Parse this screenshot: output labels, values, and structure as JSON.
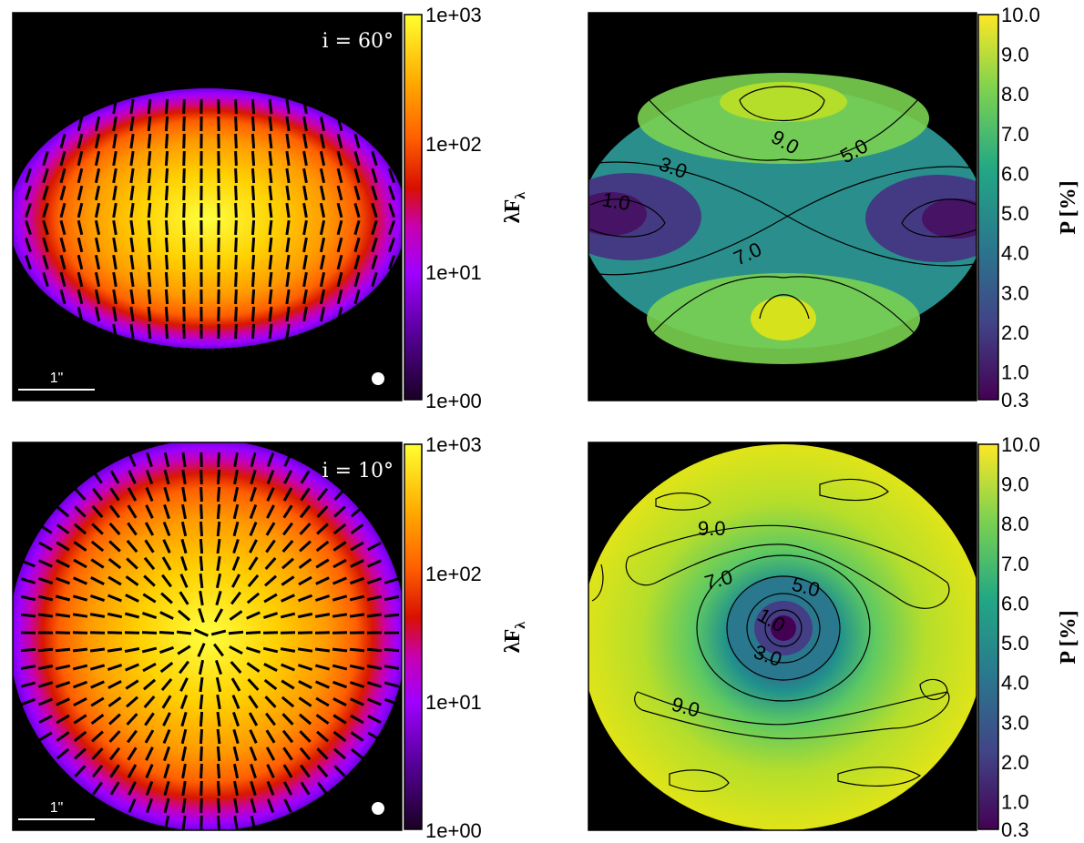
{
  "chart_data": [
    {
      "type": "heatmap",
      "panel": "top-left",
      "quantity": "total intensity with polarization vectors",
      "inclination_label": "i  =  60°",
      "scale_bar_label": "1\"",
      "colorbar": {
        "label": "λF",
        "label_sub": "λ",
        "scale": "log",
        "range": [
          1,
          1000
        ],
        "tick_labels": [
          "1e+03",
          "1e+02",
          "1e+01",
          "1e+00"
        ],
        "colormap": "gnuplot"
      },
      "beam_marker": "white circle, bottom-right"
    },
    {
      "type": "heatmap",
      "panel": "top-right",
      "quantity": "polarization degree",
      "colorbar": {
        "label": "P [%]",
        "scale": "linear",
        "range": [
          0.3,
          10.0
        ],
        "tick_labels": [
          "10.0",
          "9.0",
          "8.0",
          "7.0",
          "6.0",
          "5.0",
          "4.0",
          "3.0",
          "2.0",
          "1.0",
          "0.3"
        ],
        "colormap": "viridis"
      },
      "contour_labels": [
        "9.0",
        "5.0",
        "3.0",
        "1.0",
        "7.0"
      ]
    },
    {
      "type": "heatmap",
      "panel": "bottom-left",
      "quantity": "total intensity with polarization vectors",
      "inclination_label": "i  =  10°",
      "scale_bar_label": "1\"",
      "colorbar": {
        "label": "λF",
        "label_sub": "λ",
        "scale": "log",
        "range": [
          1,
          1000
        ],
        "tick_labels": [
          "1e+03",
          "1e+02",
          "1e+01",
          "1e+00"
        ],
        "colormap": "gnuplot"
      },
      "beam_marker": "white circle, bottom-right"
    },
    {
      "type": "heatmap",
      "panel": "bottom-right",
      "quantity": "polarization degree",
      "colorbar": {
        "label": "P [%]",
        "scale": "linear",
        "range": [
          0.3,
          10.0
        ],
        "tick_labels": [
          "10.0",
          "9.0",
          "8.0",
          "7.0",
          "6.0",
          "5.0",
          "4.0",
          "3.0",
          "2.0",
          "1.0",
          "0.3"
        ],
        "colormap": "viridis"
      },
      "contour_labels": [
        "9.0",
        "7.0",
        "5.0",
        "1.0",
        "3.0",
        "9.0"
      ]
    }
  ],
  "colors": {
    "background": "#000000",
    "gnuplot_stops": [
      "#1a0022",
      "#8a00ff",
      "#c000c0",
      "#d61200",
      "#ff6e00",
      "#ffb000",
      "#ffff30"
    ],
    "viridis_stops": [
      "#440154",
      "#414487",
      "#2a788e",
      "#22a884",
      "#7ad151",
      "#fde725"
    ]
  }
}
